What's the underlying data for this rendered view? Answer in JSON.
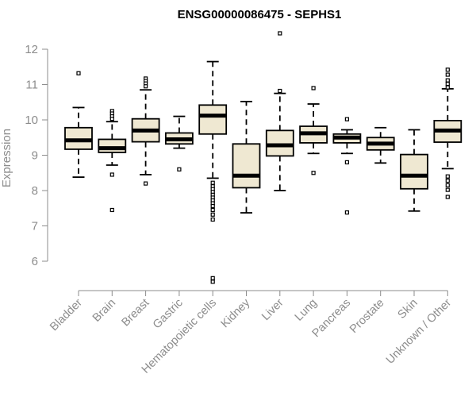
{
  "chart_data": {
    "type": "boxplot",
    "title": "ENSG00000086475 - SEPHS1",
    "xlabel": "",
    "ylabel": "Expression",
    "ylim": [
      5.2,
      12.6
    ],
    "yticks": [
      6,
      7,
      8,
      9,
      10,
      11,
      12
    ],
    "grid": false,
    "colors": {
      "box_fill": "#efe8d2",
      "stroke": "#000000",
      "axis": "#8c8c8c",
      "text": "#8c8c8c",
      "title": "#000000"
    },
    "categories": [
      "Bladder",
      "Brain",
      "Breast",
      "Gastric",
      "Hematopoietic cells",
      "Kidney",
      "Liver",
      "Lung",
      "Pancreas",
      "Prostate",
      "Skin",
      "Unknown / Other"
    ],
    "boxes": [
      {
        "name": "Bladder",
        "whisker_low": 8.38,
        "q1": 9.17,
        "median": 9.42,
        "q3": 9.78,
        "whisker_high": 10.35,
        "outliers": [
          11.32
        ]
      },
      {
        "name": "Brain",
        "whisker_low": 8.72,
        "q1": 9.08,
        "median": 9.2,
        "q3": 9.45,
        "whisker_high": 9.95,
        "outliers": [
          10.25,
          10.18,
          10.1,
          10.03,
          8.45,
          7.45
        ]
      },
      {
        "name": "Breast",
        "whisker_low": 8.45,
        "q1": 9.38,
        "median": 9.7,
        "q3": 10.03,
        "whisker_high": 10.85,
        "outliers": [
          11.17,
          11.1,
          11.03,
          10.95,
          8.2
        ]
      },
      {
        "name": "Gastric",
        "whisker_low": 9.2,
        "q1": 9.32,
        "median": 9.45,
        "q3": 9.63,
        "whisker_high": 10.1,
        "outliers": [
          8.6
        ]
      },
      {
        "name": "Hematopoietic cells",
        "whisker_low": 8.35,
        "q1": 9.6,
        "median": 10.12,
        "q3": 10.42,
        "whisker_high": 11.65,
        "outliers": [
          8.22,
          8.12,
          8.04,
          7.96,
          7.88,
          7.8,
          7.72,
          7.64,
          7.56,
          7.45,
          7.32,
          7.18,
          5.52,
          5.42
        ]
      },
      {
        "name": "Kidney",
        "whisker_low": 7.37,
        "q1": 8.08,
        "median": 8.42,
        "q3": 9.32,
        "whisker_high": 10.52,
        "outliers": []
      },
      {
        "name": "Liver",
        "whisker_low": 8.0,
        "q1": 8.98,
        "median": 9.28,
        "q3": 9.7,
        "whisker_high": 10.75,
        "outliers": [
          10.82,
          12.45
        ]
      },
      {
        "name": "Lung",
        "whisker_low": 9.05,
        "q1": 9.35,
        "median": 9.62,
        "q3": 9.82,
        "whisker_high": 10.45,
        "outliers": [
          10.9,
          8.5
        ]
      },
      {
        "name": "Pancreas",
        "whisker_low": 9.05,
        "q1": 9.35,
        "median": 9.5,
        "q3": 9.6,
        "whisker_high": 9.72,
        "outliers": [
          10.02,
          8.8,
          7.38
        ]
      },
      {
        "name": "Prostate",
        "whisker_low": 8.78,
        "q1": 9.15,
        "median": 9.33,
        "q3": 9.5,
        "whisker_high": 9.78,
        "outliers": []
      },
      {
        "name": "Skin",
        "whisker_low": 7.42,
        "q1": 8.05,
        "median": 8.42,
        "q3": 9.02,
        "whisker_high": 9.72,
        "outliers": []
      },
      {
        "name": "Unknown / Other",
        "whisker_low": 8.62,
        "q1": 9.37,
        "median": 9.7,
        "q3": 9.98,
        "whisker_high": 10.88,
        "outliers": [
          11.42,
          11.28,
          11.12,
          11.02,
          10.92,
          8.4,
          8.28,
          8.15,
          8.02,
          7.82
        ]
      }
    ]
  }
}
